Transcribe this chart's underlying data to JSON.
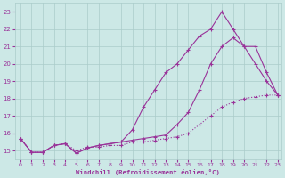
{
  "background_color": "#cce8e6",
  "grid_color": "#aaccca",
  "line_color": "#993399",
  "xlim": [
    0,
    23
  ],
  "ylim": [
    14.5,
    23.5
  ],
  "yticks": [
    15,
    16,
    17,
    18,
    19,
    20,
    21,
    22,
    23
  ],
  "xticks": [
    0,
    1,
    2,
    3,
    4,
    5,
    6,
    7,
    8,
    9,
    10,
    11,
    12,
    13,
    14,
    15,
    16,
    17,
    18,
    19,
    20,
    21,
    22,
    23
  ],
  "xlabel": "Windchill (Refroidissement éolien,°C)",
  "s1x": [
    0,
    1,
    2,
    3,
    4,
    5,
    6,
    7,
    8,
    9,
    10,
    11,
    12,
    13,
    14,
    15,
    16,
    17,
    18,
    19,
    20,
    21,
    22,
    23
  ],
  "s1y": [
    15.7,
    14.9,
    14.9,
    15.3,
    15.4,
    15.0,
    15.2,
    15.2,
    15.3,
    15.3,
    15.5,
    15.5,
    15.6,
    15.7,
    15.8,
    16.0,
    16.5,
    17.0,
    17.5,
    17.8,
    18.0,
    18.1,
    18.2,
    18.2
  ],
  "s2x": [
    0,
    1,
    2,
    3,
    4,
    5,
    6,
    7,
    8,
    9,
    10,
    11,
    12,
    13,
    14,
    15,
    16,
    17,
    18,
    19,
    20,
    21,
    22,
    23
  ],
  "s2y": [
    15.7,
    14.9,
    14.9,
    15.3,
    15.4,
    14.85,
    15.15,
    15.3,
    15.4,
    15.5,
    15.6,
    15.7,
    15.8,
    15.9,
    16.5,
    17.2,
    18.5,
    20.0,
    21.0,
    21.5,
    21.0,
    20.0,
    19.0,
    18.2
  ],
  "s3x": [
    0,
    1,
    2,
    3,
    4,
    5,
    6,
    7,
    8,
    9,
    10,
    11,
    12,
    13,
    14,
    15,
    16,
    17,
    18,
    19,
    20,
    21,
    22,
    23
  ],
  "s3y": [
    15.7,
    14.9,
    14.9,
    15.3,
    15.4,
    14.85,
    15.15,
    15.3,
    15.4,
    15.5,
    16.2,
    17.5,
    18.5,
    19.5,
    20.0,
    20.8,
    21.6,
    22.0,
    23.0,
    22.0,
    21.0,
    21.0,
    19.5,
    18.2
  ]
}
